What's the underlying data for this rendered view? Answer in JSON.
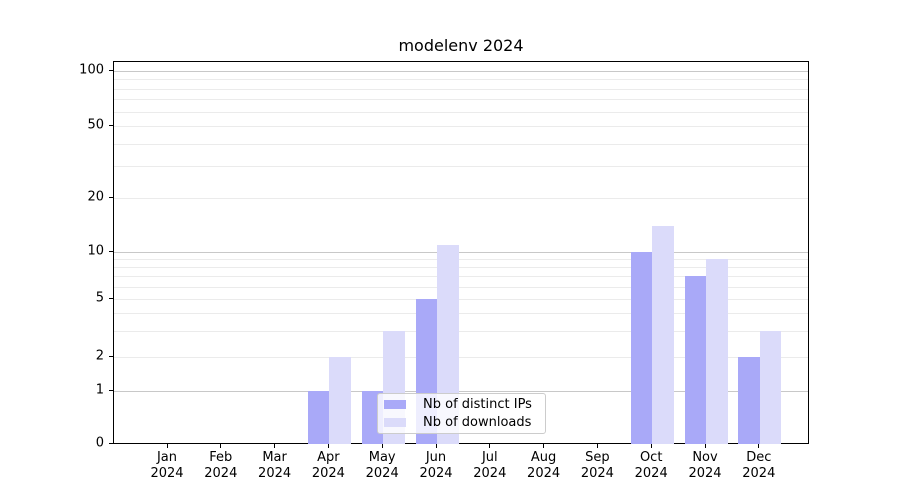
{
  "chart_data": {
    "type": "bar",
    "title": "modelenv 2024",
    "categories": [
      "Jan",
      "Feb",
      "Mar",
      "Apr",
      "May",
      "Jun",
      "Jul",
      "Aug",
      "Sep",
      "Oct",
      "Nov",
      "Dec"
    ],
    "category_year": "2024",
    "series": [
      {
        "name": "Nb of distinct IPs",
        "color": "#a9a9f8",
        "values": [
          0,
          0,
          0,
          1,
          1,
          5,
          0,
          0,
          0,
          10,
          7,
          2
        ]
      },
      {
        "name": "Nb of downloads",
        "color": "#dbdbfa",
        "values": [
          0,
          0,
          0,
          2,
          3,
          11,
          0,
          0,
          0,
          14,
          9,
          3
        ]
      }
    ],
    "yticks": [
      0,
      1,
      2,
      5,
      10,
      20,
      50,
      100
    ],
    "minor_grid_values": [
      2,
      3,
      4,
      5,
      6,
      7,
      8,
      9,
      20,
      30,
      40,
      50,
      60,
      70,
      80,
      90
    ],
    "major_grid_values": [
      1,
      10,
      100
    ],
    "scale": "symlog",
    "ylim": [
      0,
      100
    ],
    "grid": true,
    "legend_position": "lower center",
    "colors": {
      "major_grid": "#c8c8c8",
      "minor_grid": "#ebebeb",
      "spine": "#000000"
    }
  }
}
